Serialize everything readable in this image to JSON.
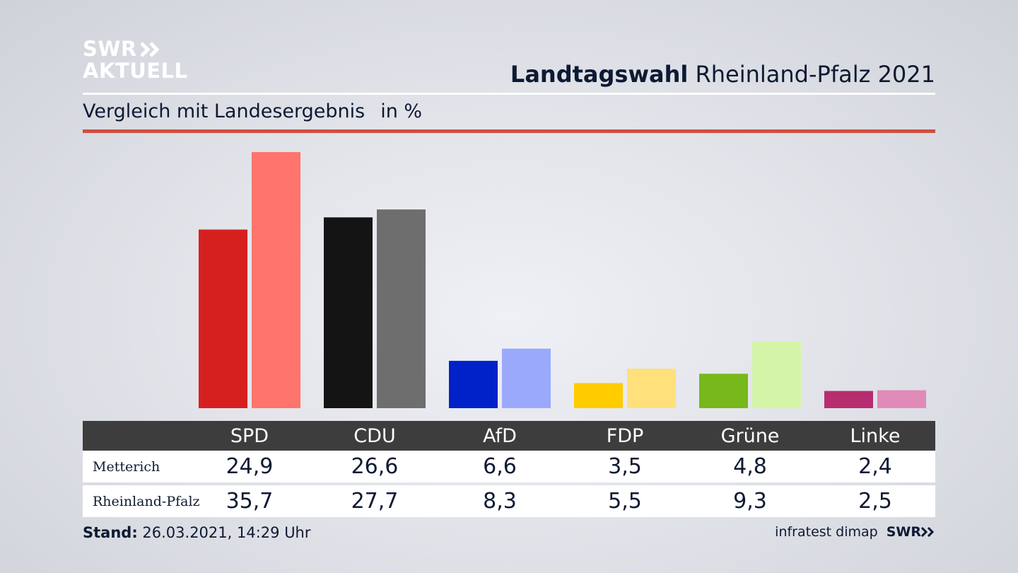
{
  "logo": {
    "line1": "SWR",
    "line2": "AKTUELL"
  },
  "header": {
    "title_bold": "Landtagswahl",
    "title_rest": "Rheinland-Pfalz 2021"
  },
  "subtitle": {
    "text": "Vergleich mit Landesergebnis",
    "unit": "in %"
  },
  "chart_data": {
    "type": "bar",
    "title": "Landtagswahl Rheinland-Pfalz 2021",
    "subtitle": "Vergleich mit Landesergebnis in %",
    "categories": [
      "SPD",
      "CDU",
      "AfD",
      "FDP",
      "Grüne",
      "Linke"
    ],
    "series": [
      {
        "name": "Metterich",
        "values": [
          24.9,
          26.6,
          6.6,
          3.5,
          4.8,
          2.4
        ],
        "colors": [
          "#d62020",
          "#141414",
          "#0022c8",
          "#ffcc00",
          "#78b81a",
          "#b82c70"
        ]
      },
      {
        "name": "Rheinland-Pfalz",
        "values": [
          35.7,
          27.7,
          8.3,
          5.5,
          9.3,
          2.5
        ],
        "colors": [
          "#ff746c",
          "#6e6e6e",
          "#9aa9fb",
          "#ffe07a",
          "#d4f5a8",
          "#e08ab8"
        ]
      }
    ],
    "value_labels": [
      [
        "24,9",
        "26,6",
        "6,6",
        "3,5",
        "4,8",
        "2,4"
      ],
      [
        "35,7",
        "27,7",
        "8,3",
        "5,5",
        "9,3",
        "2,5"
      ]
    ],
    "ylim": [
      0,
      37
    ],
    "xlabel": "",
    "ylabel": "",
    "grid": false
  },
  "footer": {
    "stand_label": "Stand:",
    "stand_value": "26.03.2021, 14:29 Uhr",
    "source": "infratest dimap",
    "brand": "SWR"
  }
}
